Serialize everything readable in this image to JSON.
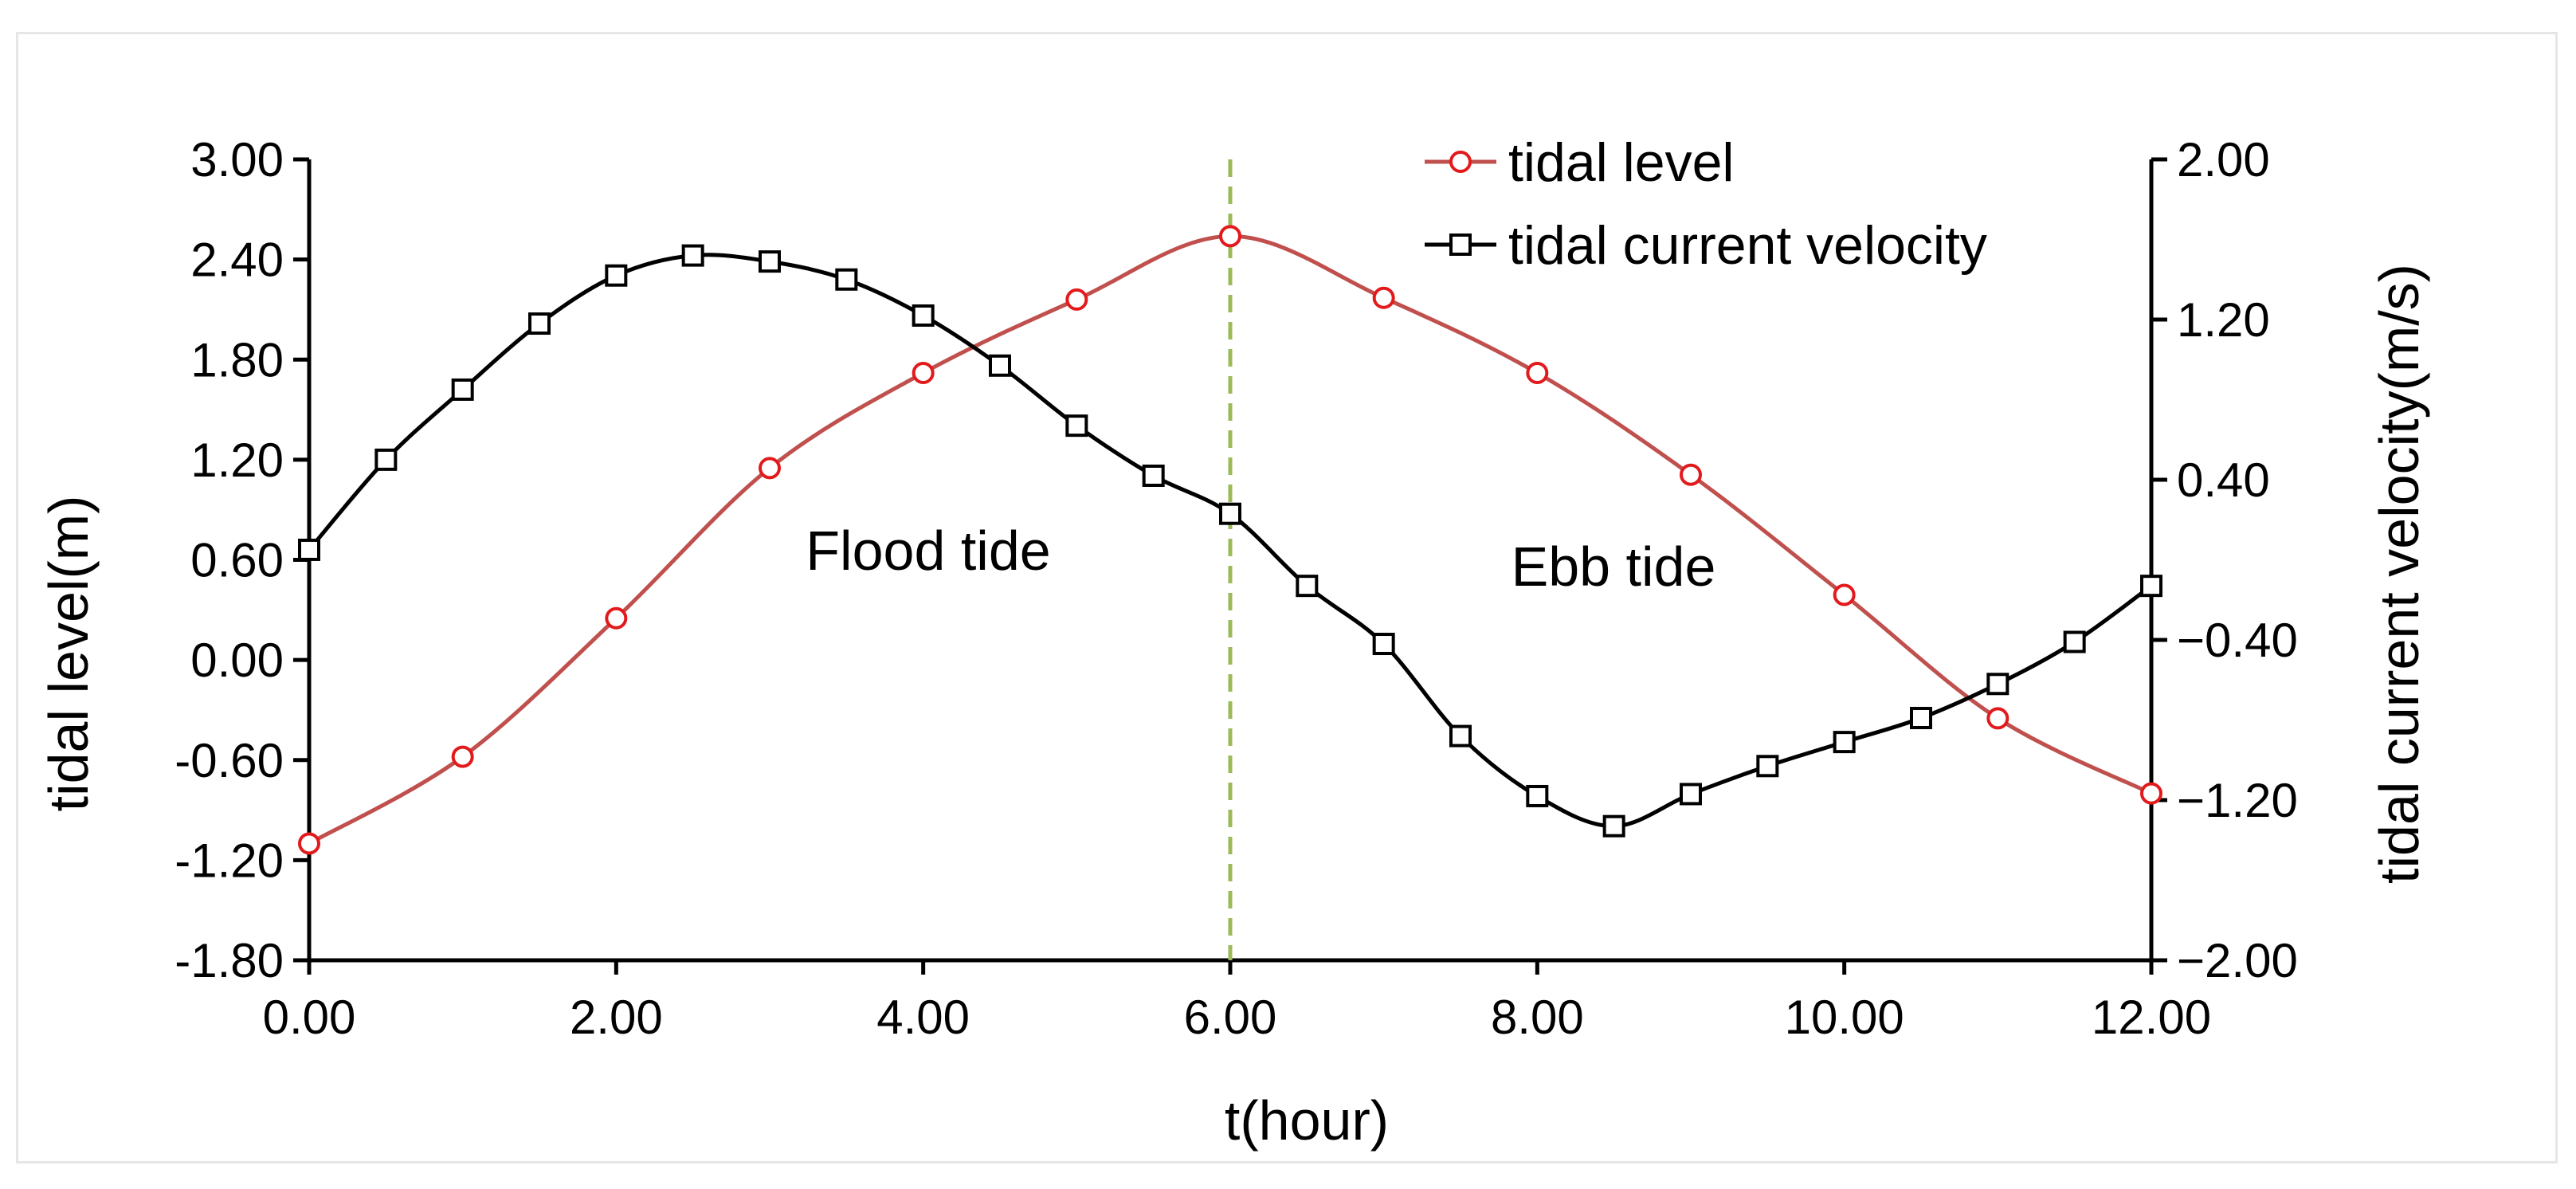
{
  "chart_data": {
    "type": "line",
    "title": "",
    "xlabel": "t(hour)",
    "ylabel_left": "tidal level(m)",
    "ylabel_right": "tidal current velocity(m/s)",
    "xlim": [
      0,
      12
    ],
    "ylim_left": [
      -1.8,
      3.0
    ],
    "ylim_right": [
      -2.0,
      2.0
    ],
    "x_ticks": [
      "0.00",
      "2.00",
      "4.00",
      "6.00",
      "8.00",
      "10.00",
      "12.00"
    ],
    "y_left_ticks": [
      "3.00",
      "2.40",
      "1.80",
      "1.20",
      "0.60",
      "0.00",
      "-0.60",
      "-1.20",
      "-1.80"
    ],
    "y_right_ticks": [
      "2.00",
      "1.20",
      "0.40",
      "−0.40",
      "−1.20",
      "−2.00"
    ],
    "grid": false,
    "legend_position": "top-right",
    "series": [
      {
        "name": "tidal level",
        "axis": "left",
        "color": "#c0504d",
        "marker": "circle",
        "x": [
          0,
          1,
          2,
          3,
          4,
          5,
          6,
          7,
          8,
          9,
          10,
          11,
          12
        ],
        "values": [
          -1.1,
          -0.58,
          0.25,
          1.15,
          1.72,
          2.16,
          2.54,
          2.17,
          1.72,
          1.11,
          0.39,
          -0.35,
          -0.8
        ]
      },
      {
        "name": "tidal current velocity",
        "axis": "right",
        "color": "#000000",
        "marker": "square",
        "x": [
          0,
          0.5,
          1,
          1.5,
          2,
          2.5,
          3,
          3.5,
          4,
          4.5,
          5,
          5.5,
          6,
          6.5,
          7,
          7.5,
          8,
          8.5,
          9,
          9.5,
          10,
          10.5,
          11,
          11.5,
          12
        ],
        "values": [
          0.05,
          0.5,
          0.85,
          1.18,
          1.42,
          1.52,
          1.49,
          1.4,
          1.22,
          0.97,
          0.67,
          0.42,
          0.23,
          -0.13,
          -0.42,
          -0.88,
          -1.18,
          -1.33,
          -1.17,
          -1.03,
          -0.91,
          -0.79,
          -0.62,
          -0.41,
          -0.13
        ]
      }
    ],
    "annotations": {
      "flood_label": "Flood tide",
      "ebb_label": "Ebb tide",
      "divider_x": 6,
      "divider_color": "#9bbb59"
    }
  }
}
